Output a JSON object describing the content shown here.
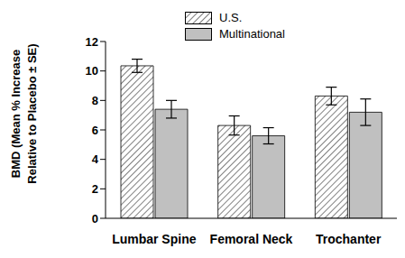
{
  "chart_data": {
    "type": "bar",
    "ylabel": "BMD (Mean % Increase Relative to Placebo ± SE)",
    "categories": [
      "Lumbar Spine",
      "Femoral Neck",
      "Trochanter"
    ],
    "series": [
      {
        "name": "U.S.",
        "color": "#555555",
        "values": [
          10.35,
          6.3,
          8.3
        ],
        "errors": [
          0.45,
          0.65,
          0.6
        ]
      },
      {
        "name": "Multinational",
        "color": "#c0c0c0",
        "values": [
          7.4,
          5.6,
          7.2
        ],
        "errors": [
          0.6,
          0.55,
          0.9
        ]
      }
    ],
    "ylim": [
      0,
      12
    ],
    "yticks": [
      0,
      2,
      4,
      6,
      8,
      10,
      12
    ],
    "legend": "top"
  }
}
